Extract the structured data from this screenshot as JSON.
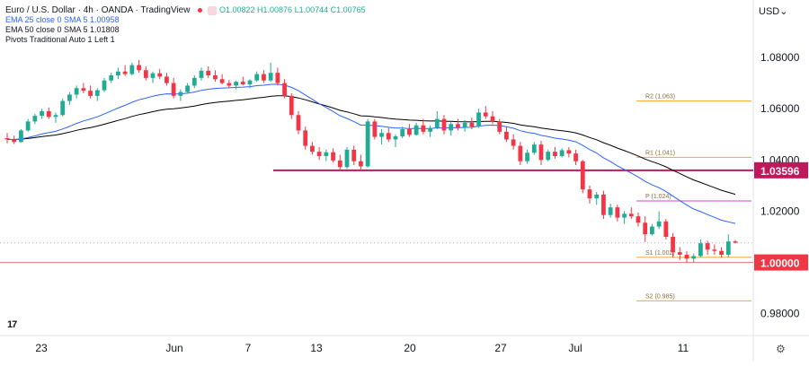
{
  "header": {
    "title": "Euro / U.S. Dollar · 4h · OANDA · TradingView",
    "ohlc": "O1.00822 H1.00876 L1.00744 C1.00765",
    "ema25": "EMA 25 close 0 SMA 5  1.00958",
    "ema50": "EMA 50 close 0 SMA 5  1.01808",
    "pivots": "Pivots Traditional Auto 1 Left 1"
  },
  "currency_label": "USD",
  "colors": {
    "up": "#22ab94",
    "down": "#f23645",
    "ema25": "#2962ff",
    "ema50": "#000000",
    "pivot": "#f5a623",
    "pivot_p": "#d047d6",
    "hline": "#c2185b",
    "parity": "#e57373"
  },
  "chart_data": {
    "type": "candlestick",
    "title": "Euro / U.S. Dollar · 4h · OANDA",
    "x_labels": [
      "23",
      "Jun",
      "7",
      "13",
      "20",
      "27",
      "Jul",
      "11"
    ],
    "y_ticks": [
      "1.08000",
      "1.06000",
      "1.04000",
      "1.02000",
      "1.00000",
      "0.98000"
    ],
    "y_tick_values": [
      1.08,
      1.06,
      1.04,
      1.02,
      1.0,
      0.98
    ],
    "ylim": [
      0.9715,
      1.0905
    ],
    "candles": [
      [
        1.0485,
        1.0505,
        1.0465,
        1.048
      ],
      [
        1.048,
        1.0495,
        1.0462,
        1.047
      ],
      [
        1.047,
        1.052,
        1.0468,
        1.0515
      ],
      [
        1.0515,
        1.056,
        1.051,
        1.055
      ],
      [
        1.055,
        1.058,
        1.054,
        1.0572
      ],
      [
        1.0572,
        1.06,
        1.056,
        1.059
      ],
      [
        1.059,
        1.0605,
        1.056,
        1.0568
      ],
      [
        1.0568,
        1.0585,
        1.0545,
        1.0575
      ],
      [
        1.0575,
        1.064,
        1.057,
        1.063
      ],
      [
        1.063,
        1.0665,
        1.0615,
        1.0655
      ],
      [
        1.0655,
        1.069,
        1.064,
        1.068
      ],
      [
        1.068,
        1.07,
        1.066,
        1.067
      ],
      [
        1.067,
        1.069,
        1.064,
        1.065
      ],
      [
        1.065,
        1.068,
        1.063,
        1.0672
      ],
      [
        1.0672,
        1.072,
        1.0665,
        1.071
      ],
      [
        1.071,
        1.074,
        1.07,
        1.073
      ],
      [
        1.073,
        1.076,
        1.0715,
        1.0745
      ],
      [
        1.0745,
        1.077,
        1.0728,
        1.0735
      ],
      [
        1.0735,
        1.078,
        1.073,
        1.077
      ],
      [
        1.077,
        1.079,
        1.074,
        1.075
      ],
      [
        1.075,
        1.0765,
        1.071,
        1.072
      ],
      [
        1.072,
        1.0745,
        1.07,
        1.0738
      ],
      [
        1.0738,
        1.0755,
        1.0715,
        1.0725
      ],
      [
        1.0725,
        1.074,
        1.069,
        1.07
      ],
      [
        1.07,
        1.072,
        1.064,
        1.065
      ],
      [
        1.065,
        1.0675,
        1.063,
        1.0665
      ],
      [
        1.0665,
        1.07,
        1.066,
        1.069
      ],
      [
        1.069,
        1.073,
        1.068,
        1.072
      ],
      [
        1.072,
        1.076,
        1.071,
        1.0748
      ],
      [
        1.0748,
        1.0765,
        1.072,
        1.073
      ],
      [
        1.073,
        1.075,
        1.0705,
        1.0715
      ],
      [
        1.0715,
        1.0735,
        1.0695,
        1.07
      ],
      [
        1.07,
        1.0712,
        1.068,
        1.069
      ],
      [
        1.069,
        1.071,
        1.0675,
        1.0705
      ],
      [
        1.0705,
        1.0725,
        1.069,
        1.0695
      ],
      [
        1.0695,
        1.0715,
        1.068,
        1.071
      ],
      [
        1.071,
        1.0745,
        1.0705,
        1.0735
      ],
      [
        1.0735,
        1.075,
        1.07,
        1.071
      ],
      [
        1.071,
        1.078,
        1.0705,
        1.074
      ],
      [
        1.074,
        1.076,
        1.069,
        1.07
      ],
      [
        1.07,
        1.0715,
        1.064,
        1.065
      ],
      [
        1.065,
        1.066,
        1.056,
        1.0575
      ],
      [
        1.0575,
        1.059,
        1.05,
        1.0515
      ],
      [
        1.0515,
        1.053,
        1.044,
        1.0455
      ],
      [
        1.0455,
        1.047,
        1.042,
        1.0432
      ],
      [
        1.0432,
        1.045,
        1.04,
        1.0415
      ],
      [
        1.0415,
        1.044,
        1.0395,
        1.043
      ],
      [
        1.043,
        1.0445,
        1.039,
        1.0398
      ],
      [
        1.0398,
        1.042,
        1.036,
        1.0372
      ],
      [
        1.0372,
        1.045,
        1.0365,
        1.044
      ],
      [
        1.044,
        1.0455,
        1.038,
        1.0395
      ],
      [
        1.0395,
        1.042,
        1.036,
        1.0375
      ],
      [
        1.0375,
        1.056,
        1.037,
        1.055
      ],
      [
        1.055,
        1.056,
        1.048,
        1.049
      ],
      [
        1.049,
        1.052,
        1.046,
        1.0505
      ],
      [
        1.0505,
        1.0525,
        1.047,
        1.048
      ],
      [
        1.048,
        1.05,
        1.045,
        1.0492
      ],
      [
        1.0492,
        1.053,
        1.0485,
        1.052
      ],
      [
        1.052,
        1.054,
        1.049,
        1.0498
      ],
      [
        1.0498,
        1.0545,
        1.0495,
        1.0535
      ],
      [
        1.0535,
        1.056,
        1.05,
        1.051
      ],
      [
        1.051,
        1.0535,
        1.049,
        1.0525
      ],
      [
        1.0525,
        1.059,
        1.052,
        1.056
      ],
      [
        1.056,
        1.0575,
        1.05,
        1.0515
      ],
      [
        1.0515,
        1.055,
        1.0495,
        1.054
      ],
      [
        1.054,
        1.056,
        1.0515,
        1.0525
      ],
      [
        1.0525,
        1.0555,
        1.051,
        1.0545
      ],
      [
        1.0545,
        1.0565,
        1.052,
        1.053
      ],
      [
        1.053,
        1.06,
        1.0525,
        1.0585
      ],
      [
        1.0585,
        1.061,
        1.056,
        1.057
      ],
      [
        1.057,
        1.059,
        1.054,
        1.055
      ],
      [
        1.055,
        1.056,
        1.05,
        1.051
      ],
      [
        1.051,
        1.053,
        1.047,
        1.048
      ],
      [
        1.048,
        1.05,
        1.044,
        1.0455
      ],
      [
        1.0455,
        1.047,
        1.038,
        1.0395
      ],
      [
        1.0395,
        1.044,
        1.0385,
        1.0428
      ],
      [
        1.0428,
        1.047,
        1.042,
        1.046
      ],
      [
        1.046,
        1.0475,
        1.038,
        1.04
      ],
      [
        1.04,
        1.044,
        1.0395,
        1.0432
      ],
      [
        1.0432,
        1.045,
        1.0405,
        1.0415
      ],
      [
        1.0415,
        1.0445,
        1.041,
        1.0438
      ],
      [
        1.0438,
        1.045,
        1.041,
        1.0425
      ],
      [
        1.0425,
        1.044,
        1.038,
        1.0395
      ],
      [
        1.0395,
        1.04,
        1.027,
        1.0285
      ],
      [
        1.0285,
        1.03,
        1.023,
        1.025
      ],
      [
        1.025,
        1.0275,
        1.0225,
        1.0265
      ],
      [
        1.0265,
        1.028,
        1.017,
        1.0185
      ],
      [
        1.0185,
        1.023,
        1.0175,
        1.0215
      ],
      [
        1.0215,
        1.0225,
        1.016,
        1.0175
      ],
      [
        1.0175,
        1.02,
        1.015,
        1.019
      ],
      [
        1.019,
        1.0215,
        1.017,
        1.018
      ],
      [
        1.018,
        1.0195,
        1.014,
        1.0155
      ],
      [
        1.0155,
        1.018,
        1.008,
        1.011
      ],
      [
        1.011,
        1.015,
        1.0105,
        1.014
      ],
      [
        1.014,
        1.02,
        1.013,
        1.016
      ],
      [
        1.016,
        1.017,
        1.009,
        1.01
      ],
      [
        1.01,
        1.0115,
        1.002,
        1.004
      ],
      [
        1.004,
        1.006,
        1.001,
        1.003
      ],
      [
        1.003,
        1.0045,
        1.0,
        1.0015
      ],
      [
        1.0015,
        1.0035,
        1.0,
        1.0025
      ],
      [
        1.0025,
        1.009,
        1.002,
        1.0075
      ],
      [
        1.0075,
        1.0085,
        1.003,
        1.005
      ],
      [
        1.005,
        1.007,
        1.003,
        1.0045
      ],
      [
        1.0045,
        1.006,
        1.002,
        1.003
      ],
      [
        1.003,
        1.011,
        1.002,
        1.0082
      ],
      [
        1.0082,
        1.0088,
        1.0074,
        1.0077
      ]
    ],
    "pivots": [
      {
        "label": "R2 (1.063)",
        "value": 1.063
      },
      {
        "label": "R1 (1.041)",
        "value": 1.041
      },
      {
        "label": "P (1.024)",
        "value": 1.024
      },
      {
        "label": "S1 (1.002)",
        "value": 1.002
      },
      {
        "label": "S2 (0.985)",
        "value": 0.985
      }
    ],
    "hline": {
      "label": "1.03596",
      "value": 1.03596
    },
    "parity_line": {
      "label": "1.00000",
      "value": 1.0
    },
    "last_price": 1.00765,
    "legend": [
      "EMA 25",
      "EMA 50"
    ]
  }
}
